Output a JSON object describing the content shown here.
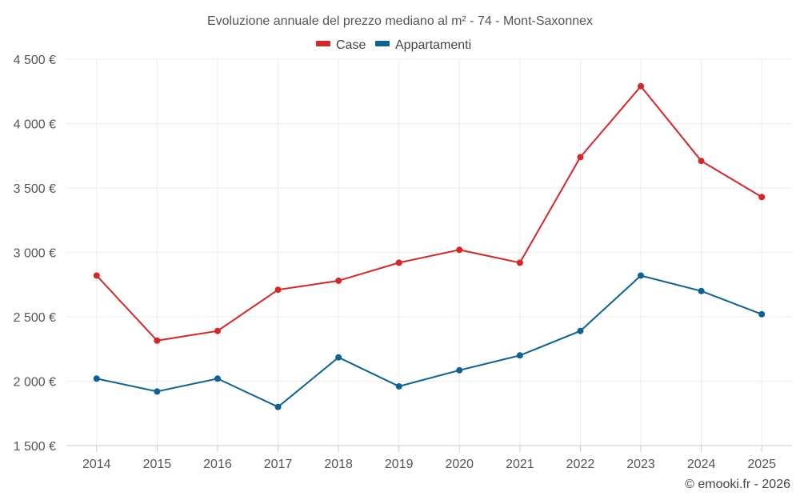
{
  "chart_data": {
    "type": "line",
    "title": "Evoluzione annuale del prezzo mediano al m² - 74 - Mont-Saxonnex",
    "categories": [
      "2014",
      "2015",
      "2016",
      "2017",
      "2018",
      "2019",
      "2020",
      "2021",
      "2022",
      "2023",
      "2024",
      "2025"
    ],
    "series": [
      {
        "name": "Case",
        "color": "#d62728",
        "values": [
          2820,
          2315,
          2390,
          2710,
          2780,
          2920,
          3020,
          2920,
          3740,
          4290,
          3710,
          3430
        ]
      },
      {
        "name": "Appartamenti",
        "color": "#0a6296",
        "values": [
          2020,
          1920,
          2020,
          1800,
          2185,
          1960,
          2085,
          2200,
          2390,
          2820,
          2700,
          2520
        ]
      }
    ],
    "ylim": [
      1500,
      4500
    ],
    "yticks": [
      1500,
      2000,
      2500,
      3000,
      3500,
      4000,
      4500
    ],
    "ytick_labels": [
      "1 500 €",
      "2 000 €",
      "2 500 €",
      "3 000 €",
      "3 500 €",
      "4 000 €",
      "4 500 €"
    ],
    "legend_position": "top-center",
    "grid": true
  },
  "credit": "© emooki.fr - 2026"
}
